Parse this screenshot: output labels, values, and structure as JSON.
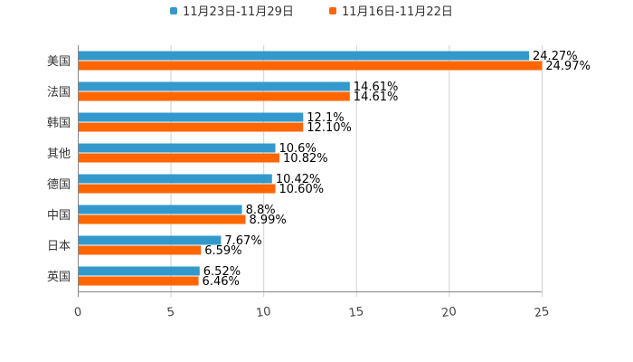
{
  "chart_data": {
    "type": "bar",
    "orientation": "horizontal",
    "title": "",
    "xlabel": "",
    "ylabel": "",
    "xlim": [
      0,
      25
    ],
    "x_ticks": [
      0,
      5,
      10,
      15,
      20,
      25
    ],
    "grid": true,
    "legend_position": "top",
    "categories": [
      "美国",
      "法国",
      "韩国",
      "其他",
      "德国",
      "中国",
      "日本",
      "英国"
    ],
    "series": [
      {
        "name": "11月23日-11月29日",
        "color": "#3399cc",
        "values": [
          24.27,
          14.61,
          12.1,
          10.6,
          10.42,
          8.8,
          7.67,
          6.52
        ],
        "labels": [
          "24.27%",
          "14.61%",
          "12.1%",
          "10.6%",
          "10.42%",
          "8.8%",
          "7.67%",
          "6.52%"
        ]
      },
      {
        "name": "11月16日-11月22日",
        "color": "#ff6600",
        "values": [
          24.97,
          14.61,
          12.1,
          10.82,
          10.6,
          8.99,
          6.59,
          6.46
        ],
        "labels": [
          "24.97%",
          "14.61%",
          "12.10%",
          "10.82%",
          "10.60%",
          "8.99%",
          "6.59%",
          "6.46%"
        ]
      }
    ]
  }
}
